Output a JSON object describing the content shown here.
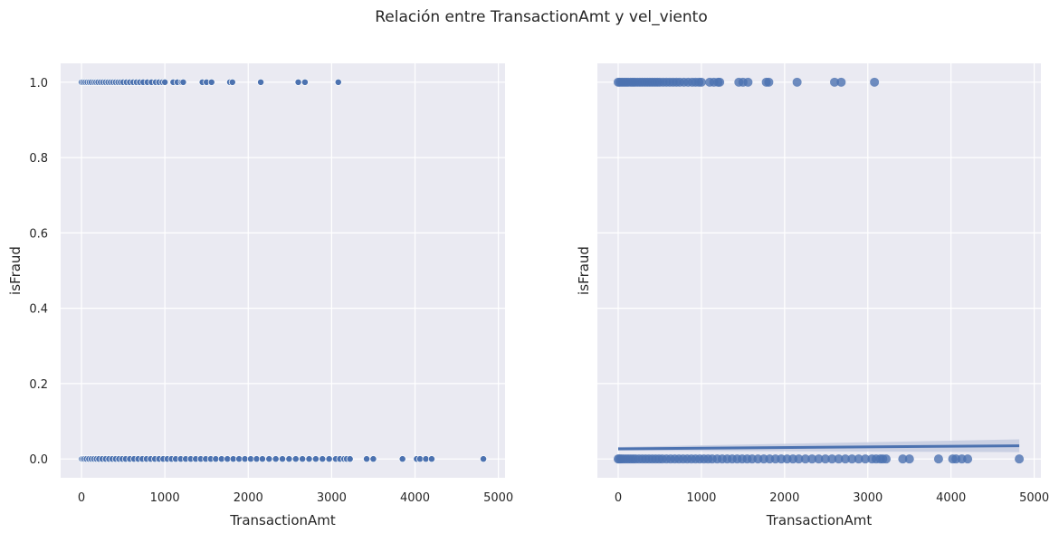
{
  "figure": {
    "suptitle": "Relación entre TransactionAmt y vel_viento"
  },
  "style": {
    "background": "#eaeaf2",
    "grid": "#ffffff",
    "point": "#4c72b0",
    "line": "#4c72b0",
    "ci_band": "#c4cbe0"
  },
  "chart_data": [
    {
      "type": "scatter",
      "xlabel": "TransactionAmt",
      "ylabel": "isFraud",
      "xlim": [
        -250,
        5080
      ],
      "ylim": [
        -0.05,
        1.05
      ],
      "xticks": [
        0,
        1000,
        2000,
        3000,
        4000,
        5000
      ],
      "yticks": [
        0.0,
        0.2,
        0.4,
        0.6,
        0.8,
        1.0
      ],
      "ytick_labels": [
        "0.0",
        "0.2",
        "0.4",
        "0.6",
        "0.8",
        "1.0"
      ],
      "grid": true,
      "series": [
        {
          "y": 1,
          "x": [
            0,
            20,
            45,
            70,
            95,
            120,
            150,
            175,
            200,
            230,
            260,
            290,
            320,
            350,
            380,
            410,
            440,
            470,
            500,
            540,
            580,
            620,
            660,
            700,
            740,
            790,
            840,
            890,
            930,
            970,
            1000,
            1100,
            1150,
            1200,
            1220,
            1450,
            1500,
            1560,
            1780,
            1810,
            2150,
            2600,
            2680,
            3080
          ]
        },
        {
          "y": 0,
          "x": [
            0,
            15,
            35,
            60,
            90,
            120,
            150,
            180,
            210,
            250,
            290,
            330,
            370,
            410,
            450,
            490,
            530,
            580,
            630,
            680,
            730,
            780,
            830,
            880,
            930,
            980,
            1030,
            1080,
            1130,
            1190,
            1250,
            1310,
            1370,
            1430,
            1490,
            1550,
            1610,
            1680,
            1750,
            1820,
            1890,
            1960,
            2030,
            2100,
            2170,
            2250,
            2330,
            2410,
            2490,
            2570,
            2650,
            2730,
            2810,
            2890,
            2970,
            3050,
            3100,
            3150,
            3180,
            3220,
            3420,
            3500,
            3850,
            4020,
            4060,
            4130,
            4200,
            4820
          ]
        }
      ]
    },
    {
      "type": "scatter",
      "xlabel": "TransactionAmt",
      "ylabel": "isFraud",
      "xlim": [
        -250,
        5080
      ],
      "ylim": [
        -0.05,
        1.05
      ],
      "xticks": [
        0,
        1000,
        2000,
        3000,
        4000,
        5000
      ],
      "yticks": [
        0.0,
        0.2,
        0.4,
        0.6,
        0.8,
        1.0
      ],
      "grid": true,
      "sharey": true,
      "series": [
        {
          "y": 1,
          "x": [
            0,
            20,
            45,
            70,
            95,
            120,
            150,
            175,
            200,
            230,
            260,
            290,
            320,
            350,
            380,
            410,
            440,
            470,
            500,
            540,
            580,
            620,
            660,
            700,
            740,
            790,
            840,
            890,
            930,
            970,
            1000,
            1100,
            1150,
            1200,
            1220,
            1450,
            1500,
            1560,
            1780,
            1810,
            2150,
            2600,
            2680,
            3080
          ]
        },
        {
          "y": 0,
          "x": [
            0,
            15,
            35,
            60,
            90,
            120,
            150,
            180,
            210,
            250,
            290,
            330,
            370,
            410,
            450,
            490,
            530,
            580,
            630,
            680,
            730,
            780,
            830,
            880,
            930,
            980,
            1030,
            1080,
            1130,
            1190,
            1250,
            1310,
            1370,
            1430,
            1490,
            1550,
            1610,
            1680,
            1750,
            1820,
            1890,
            1960,
            2030,
            2100,
            2170,
            2250,
            2330,
            2410,
            2490,
            2570,
            2650,
            2730,
            2810,
            2890,
            2970,
            3050,
            3100,
            3150,
            3180,
            3220,
            3420,
            3500,
            3850,
            4020,
            4060,
            4130,
            4200,
            4820
          ]
        }
      ],
      "regression": {
        "x": [
          0,
          4820
        ],
        "y": [
          0.027,
          0.035
        ],
        "ci_low": [
          0.022,
          0.018
        ],
        "ci_high": [
          0.032,
          0.052
        ]
      }
    }
  ]
}
